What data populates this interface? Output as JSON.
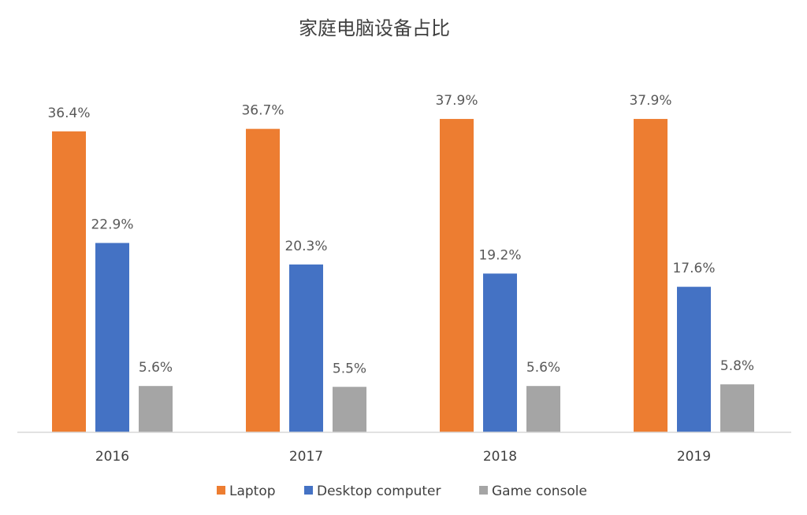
{
  "chart_data": {
    "type": "bar",
    "title": "家庭电脑设备占比",
    "xlabel": "",
    "ylabel": "",
    "categories": [
      "2016",
      "2017",
      "2018",
      "2019"
    ],
    "ylim": [
      0,
      40
    ],
    "grid": false,
    "legend_position": "bottom",
    "series": [
      {
        "name": "Laptop",
        "color": "#ED7D31",
        "values": [
          36.4,
          36.7,
          37.9,
          37.9
        ],
        "labels": [
          "36.4%",
          "36.7%",
          "37.9%",
          "37.9%"
        ]
      },
      {
        "name": "Desktop computer",
        "color": "#4472C4",
        "values": [
          22.9,
          20.3,
          19.2,
          17.6
        ],
        "labels": [
          "22.9%",
          "20.3%",
          "19.2%",
          "17.6%"
        ]
      },
      {
        "name": "Game console",
        "color": "#A5A5A5",
        "values": [
          5.6,
          5.5,
          5.6,
          5.8
        ],
        "labels": [
          "5.6%",
          "5.5%",
          "5.6%",
          "5.8%"
        ]
      }
    ]
  }
}
